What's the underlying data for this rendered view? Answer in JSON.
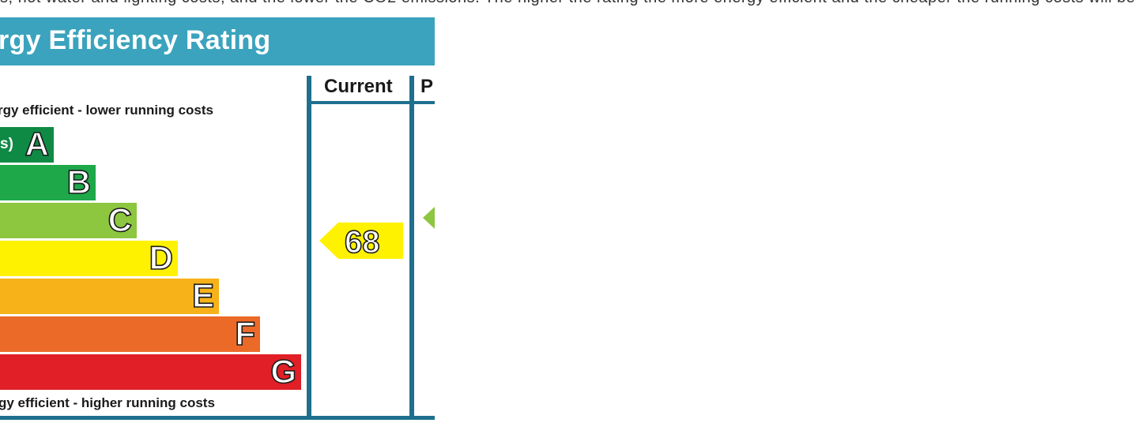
{
  "top_caption": "s, hot water and lighting costs, and the lower the CO2 emissions. The higher the rating the more energy efficient and the cheaper the running costs will be",
  "title": "rgy Efficiency Rating",
  "columns": {
    "current": "Current",
    "potential": "P"
  },
  "captions": {
    "top": "rgy efficient - lower running costs",
    "bottom": "gy efficient - higher running costs"
  },
  "bands": [
    {
      "letter": "A",
      "range": "s)",
      "color": "#0e8a45"
    },
    {
      "letter": "B",
      "range": "",
      "color": "#1ea84a"
    },
    {
      "letter": "C",
      "range": "",
      "color": "#8dc63f"
    },
    {
      "letter": "D",
      "range": "",
      "color": "#fff200"
    },
    {
      "letter": "E",
      "range": "",
      "color": "#f7b21a"
    },
    {
      "letter": "F",
      "range": "",
      "color": "#ec6a28"
    },
    {
      "letter": "G",
      "range": "",
      "color": "#e11f26"
    }
  ],
  "current_rating": {
    "value": "68",
    "band": "D",
    "color": "#fff200"
  },
  "potential_rating": {
    "band": "C",
    "color": "#8dc63f"
  },
  "colors": {
    "header": "#3ba3bd",
    "lines": "#1f6f8e"
  }
}
